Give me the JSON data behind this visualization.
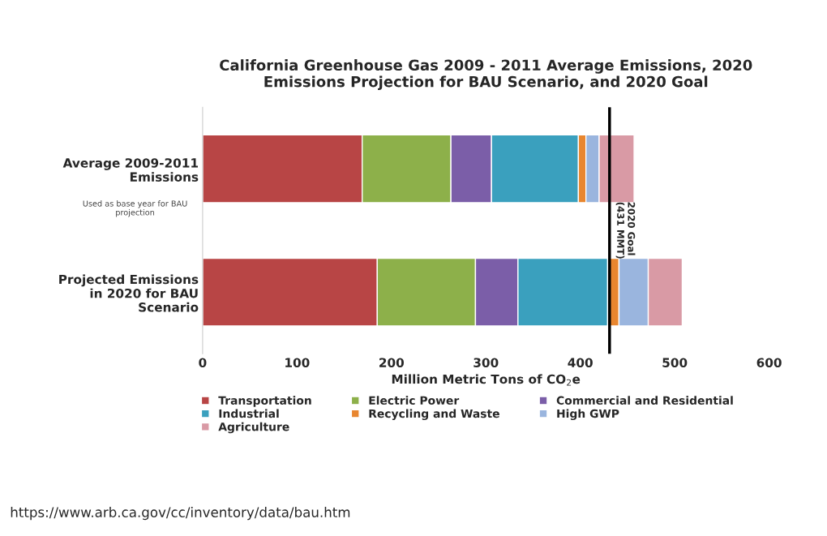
{
  "chart_data": {
    "type": "bar",
    "orientation": "horizontal",
    "stacked": true,
    "title": "California Greenhouse Gas 2009 - 2011 Average Emissions, 2020\nEmissions Projection for BAU Scenario, and 2020 Goal",
    "xlabel": "Million Metric Tons of CO$_{2}$e",
    "categories": [
      "Average 2009-2011\nEmissions",
      "Projected Emissions\nin 2020 for BAU\nScenario"
    ],
    "series": [
      {
        "name": "Transportation",
        "color": "#b84545",
        "values": [
          169,
          185
        ]
      },
      {
        "name": "Electric Power",
        "color": "#8db04a",
        "values": [
          94,
          104
        ]
      },
      {
        "name": "Commercial and Residential",
        "color": "#7b5ea8",
        "values": [
          43,
          45
        ]
      },
      {
        "name": "Industrial",
        "color": "#3aa0be",
        "values": [
          92,
          95
        ]
      },
      {
        "name": "Recycling and Waste",
        "color": "#e8862f",
        "values": [
          8,
          12
        ]
      },
      {
        "name": "High GWP",
        "color": "#9ab5de",
        "values": [
          14,
          31
        ]
      },
      {
        "name": "Agriculture",
        "color": "#d99aa5",
        "values": [
          37,
          36
        ]
      }
    ],
    "xlim": [
      0,
      600
    ],
    "xticks": [
      0,
      100,
      200,
      300,
      400,
      500,
      600
    ],
    "ref_lines": [
      {
        "axis": "x",
        "value": 431,
        "label": "2020 Goal\n(431 MMT)",
        "color": "#000000"
      }
    ],
    "legend": "bottom",
    "grid": false,
    "annotations": [
      "Used as base year for BAU\nprojection",
      "https://www.arb.ca.gov/cc/inventory/data/bau.htm"
    ]
  }
}
